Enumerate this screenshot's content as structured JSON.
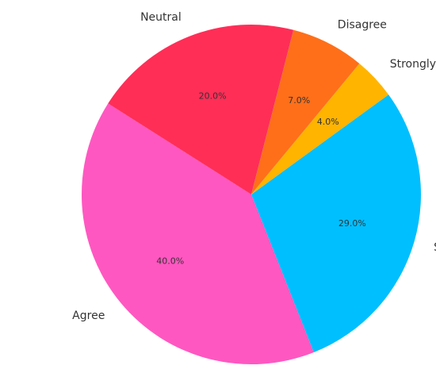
{
  "chart_data": {
    "type": "pie",
    "title": "",
    "slices": [
      {
        "label": "Strongly Agree",
        "value": 29.0,
        "pct_label": "29.0%",
        "color": "#00BFFF"
      },
      {
        "label": "Agree",
        "value": 40.0,
        "pct_label": "40.0%",
        "color": "#FF57C1"
      },
      {
        "label": "Neutral",
        "value": 20.0,
        "pct_label": "20.0%",
        "color": "#FF2E57"
      },
      {
        "label": "Disagree",
        "value": 7.0,
        "pct_label": "7.0%",
        "color": "#FF6F1A"
      },
      {
        "label": "Strongly Disagree",
        "value": 4.0,
        "pct_label": "4.0%",
        "color": "#FFB400"
      }
    ],
    "start_angle_deg": 36,
    "direction": "clockwise",
    "legend": "none"
  }
}
